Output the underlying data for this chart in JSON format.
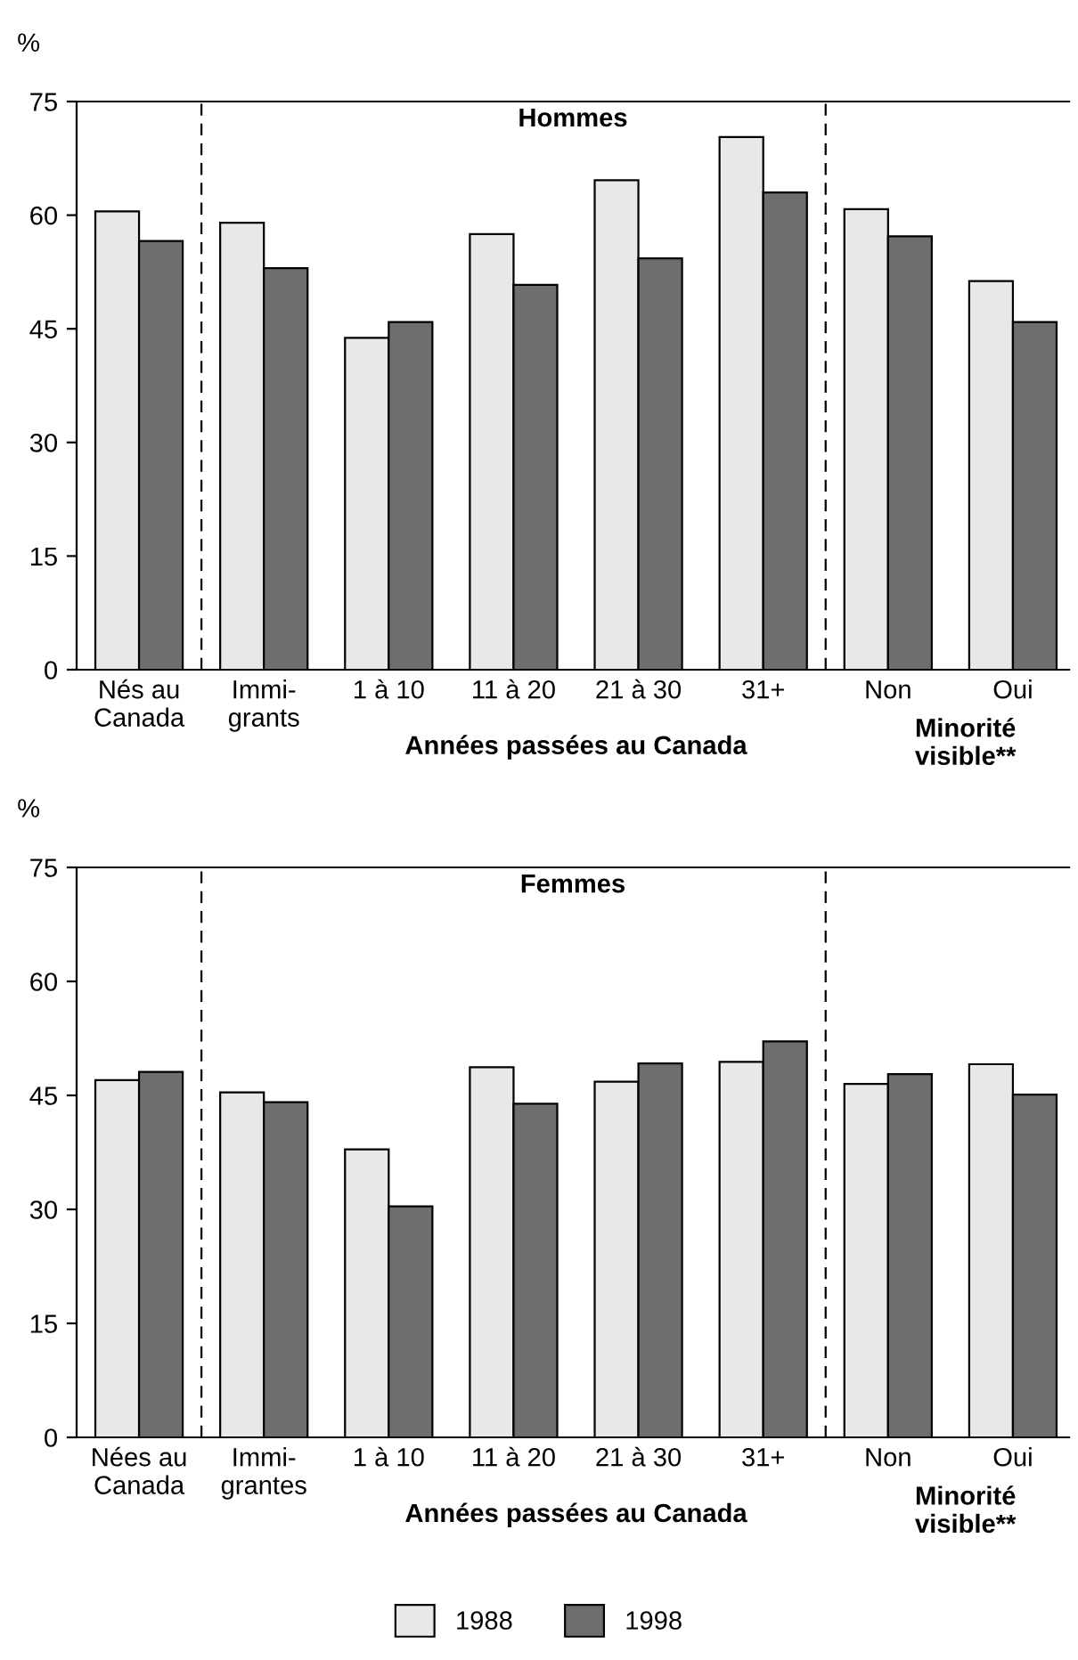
{
  "chart_data": [
    {
      "type": "bar",
      "title": "Hommes",
      "ylabel": "%",
      "categories": [
        "Nés au\nCanada",
        "Immi-\ngrants",
        "1 à 10",
        "11 à 20",
        "21 à 30",
        "31+",
        "Non",
        "Oui"
      ],
      "series": [
        {
          "name": "1988",
          "color": "#e8e8e8",
          "values": [
            60.5,
            59.0,
            43.8,
            57.5,
            64.6,
            70.3,
            60.8,
            51.3
          ]
        },
        {
          "name": "1998",
          "color": "#6e6e6e",
          "values": [
            56.6,
            53.0,
            45.9,
            50.8,
            54.3,
            63.0,
            57.2,
            45.9
          ]
        }
      ],
      "ylim": [
        0,
        75
      ],
      "yticks": [
        0,
        15,
        30,
        45,
        60,
        75
      ],
      "grid": false,
      "legend": "bottom",
      "annotations": [
        "Années passées au Canada",
        "Minorité\nvisible**"
      ]
    },
    {
      "type": "bar",
      "title": "Femmes",
      "ylabel": "%",
      "categories": [
        "Nées au\nCanada",
        "Immi-\ngrantes",
        "1 à 10",
        "11 à 20",
        "21 à 30",
        "31+",
        "Non",
        "Oui"
      ],
      "series": [
        {
          "name": "1988",
          "color": "#e8e8e8",
          "values": [
            47.0,
            45.4,
            37.9,
            48.7,
            46.8,
            49.4,
            46.5,
            49.1
          ]
        },
        {
          "name": "1998",
          "color": "#6e6e6e",
          "values": [
            48.1,
            44.1,
            30.4,
            43.9,
            49.2,
            52.1,
            47.8,
            45.1
          ]
        }
      ],
      "ylim": [
        0,
        75
      ],
      "yticks": [
        0,
        15,
        30,
        45,
        60,
        75
      ],
      "grid": false,
      "legend": "bottom",
      "annotations": [
        "Années passées au Canada",
        "Minorité\nvisible**"
      ]
    }
  ]
}
